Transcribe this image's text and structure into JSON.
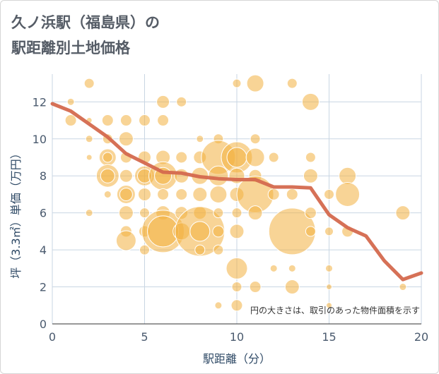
{
  "title_line1": "久ノ浜駅（福島県）の",
  "title_line2": "駅距離別土地価格",
  "chart_data": {
    "type": "scatter",
    "xlabel": "駅距離（分）",
    "ylabel": "坪（3.3㎡）単価（万円）",
    "xlim": [
      0,
      20
    ],
    "ylim": [
      0,
      13.5
    ],
    "xticks": [
      0,
      5,
      10,
      15,
      20
    ],
    "yticks": [
      0,
      2,
      4,
      6,
      8,
      10,
      12
    ],
    "grid": true,
    "note": "円の大きさは、取引のあった物件面積を示す",
    "bubble_color": "#f2b13f",
    "line_color": "#d4694e",
    "bubbles": [
      [
        1,
        12,
        5
      ],
      [
        1,
        11,
        8
      ],
      [
        2,
        13,
        7
      ],
      [
        2,
        11,
        4
      ],
      [
        2,
        10,
        5
      ],
      [
        2,
        9,
        4
      ],
      [
        2,
        6,
        5
      ],
      [
        3,
        11,
        8
      ],
      [
        3,
        10,
        7
      ],
      [
        3,
        9,
        12
      ],
      [
        3,
        9,
        7
      ],
      [
        3,
        8,
        16
      ],
      [
        3,
        8,
        10
      ],
      [
        3,
        7,
        5
      ],
      [
        4,
        11,
        8
      ],
      [
        4,
        10,
        10
      ],
      [
        4,
        9,
        8
      ],
      [
        4,
        8,
        9
      ],
      [
        4,
        7,
        13
      ],
      [
        4,
        7,
        9
      ],
      [
        4,
        6,
        10
      ],
      [
        4,
        5,
        8
      ],
      [
        4,
        4.5,
        14
      ],
      [
        5,
        11,
        8
      ],
      [
        5,
        9,
        9
      ],
      [
        5,
        8,
        14
      ],
      [
        5,
        8,
        10
      ],
      [
        5,
        7,
        9
      ],
      [
        5,
        6,
        7
      ],
      [
        5,
        5,
        8
      ],
      [
        5,
        4,
        7
      ],
      [
        6,
        12,
        9
      ],
      [
        6,
        11,
        8
      ],
      [
        6,
        9,
        10
      ],
      [
        6,
        8,
        20
      ],
      [
        6,
        8,
        12
      ],
      [
        6,
        7,
        8
      ],
      [
        6,
        6,
        10
      ],
      [
        6,
        5,
        30
      ],
      [
        6,
        5,
        22
      ],
      [
        7,
        12,
        7
      ],
      [
        7,
        9,
        8
      ],
      [
        7,
        8,
        10
      ],
      [
        7,
        7,
        8
      ],
      [
        7,
        6,
        9
      ],
      [
        7,
        5,
        12
      ],
      [
        8,
        10,
        5
      ],
      [
        8,
        9,
        9
      ],
      [
        8,
        8,
        12
      ],
      [
        8,
        7,
        10
      ],
      [
        8,
        6,
        9
      ],
      [
        8,
        5,
        35
      ],
      [
        8,
        5,
        14
      ],
      [
        8,
        4,
        7
      ],
      [
        9,
        10,
        7
      ],
      [
        9,
        9,
        24
      ],
      [
        9,
        8,
        14
      ],
      [
        9,
        7,
        12
      ],
      [
        9,
        6,
        7
      ],
      [
        9,
        5,
        8
      ],
      [
        9,
        4,
        7
      ],
      [
        9,
        1,
        5
      ],
      [
        10,
        13,
        6
      ],
      [
        10,
        9,
        22
      ],
      [
        10,
        9,
        14
      ],
      [
        10,
        8,
        11
      ],
      [
        10,
        7,
        10
      ],
      [
        10,
        6,
        7
      ],
      [
        10,
        5,
        10
      ],
      [
        10,
        3,
        15
      ],
      [
        10,
        2,
        7
      ],
      [
        10,
        1,
        8
      ],
      [
        11,
        13,
        12
      ],
      [
        11,
        10,
        7
      ],
      [
        11,
        9,
        13
      ],
      [
        11,
        8,
        9
      ],
      [
        11,
        7,
        26
      ],
      [
        11,
        6,
        10
      ],
      [
        11,
        2,
        8
      ],
      [
        12,
        9,
        7
      ],
      [
        12,
        7,
        8
      ],
      [
        12,
        3,
        5
      ],
      [
        13,
        13,
        7
      ],
      [
        13,
        7,
        8
      ],
      [
        13,
        5,
        33
      ],
      [
        13,
        3,
        5
      ],
      [
        13,
        2,
        10
      ],
      [
        14,
        12,
        12
      ],
      [
        14,
        9,
        7
      ],
      [
        14,
        8,
        10
      ],
      [
        14,
        6,
        8
      ],
      [
        14,
        5,
        7
      ],
      [
        15,
        7,
        7
      ],
      [
        15,
        5,
        6
      ],
      [
        15,
        3,
        5
      ],
      [
        15,
        2,
        4
      ],
      [
        15,
        1,
        4
      ],
      [
        16,
        8,
        12
      ],
      [
        16,
        7,
        17
      ],
      [
        16,
        5,
        8
      ],
      [
        19,
        6,
        10
      ],
      [
        19,
        2,
        5
      ]
    ],
    "trend": [
      [
        0,
        11.9
      ],
      [
        1,
        11.5
      ],
      [
        2,
        10.8
      ],
      [
        3,
        10.1
      ],
      [
        4,
        9.2
      ],
      [
        5,
        8.7
      ],
      [
        6,
        8.2
      ],
      [
        7,
        8.15
      ],
      [
        8,
        7.95
      ],
      [
        9,
        7.85
      ],
      [
        10,
        7.8
      ],
      [
        11,
        7.8
      ],
      [
        12,
        7.4
      ],
      [
        13,
        7.4
      ],
      [
        14,
        7.35
      ],
      [
        15,
        5.9
      ],
      [
        16,
        5.2
      ],
      [
        17,
        4.75
      ],
      [
        18,
        3.4
      ],
      [
        19,
        2.4
      ],
      [
        20,
        2.75
      ]
    ]
  }
}
